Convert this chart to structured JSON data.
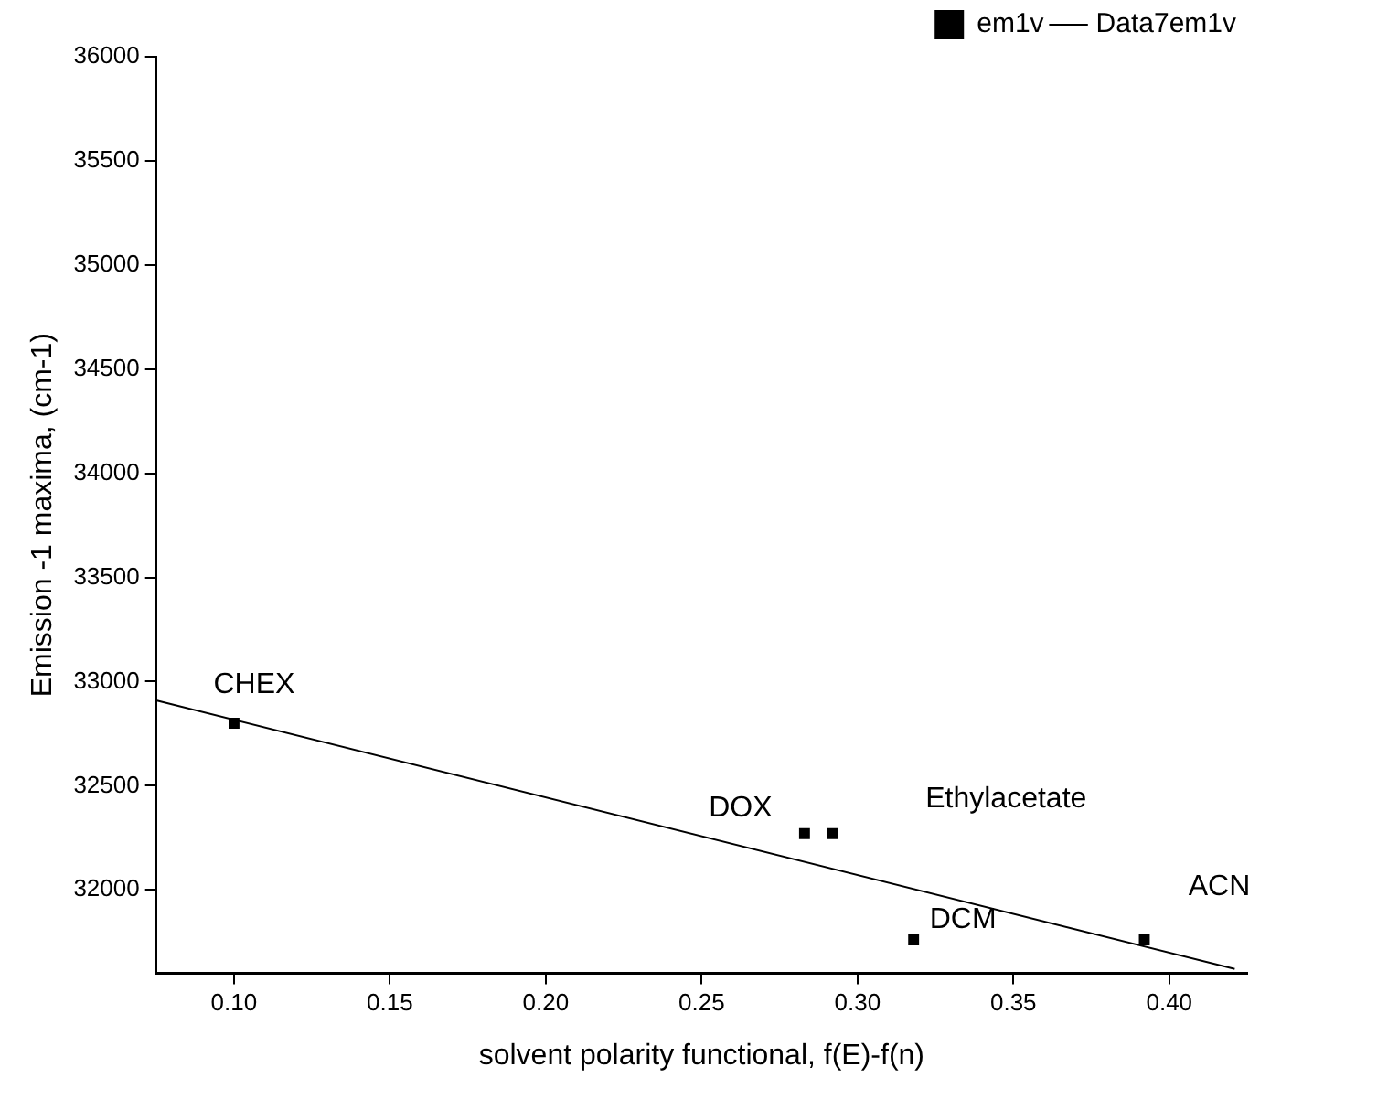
{
  "chart_data": {
    "type": "scatter",
    "xlabel": "solvent polarity functional, f(E)-f(n)",
    "ylabel": "Emission -1 maxima, (cm-1)",
    "series": [
      {
        "name": "em1v",
        "type": "scatter",
        "color": "#000000",
        "marker": "square",
        "x": [
          0.1,
          0.283,
          0.292,
          0.318,
          0.392
        ],
        "values": [
          32800,
          32270,
          32270,
          31760,
          31760
        ]
      },
      {
        "name": "Data7em1v",
        "type": "line",
        "color": "#000000",
        "marker": "none",
        "x": [
          0.075,
          0.421
        ],
        "values": [
          32910,
          31620
        ]
      }
    ],
    "xlim": [
      0.075,
      0.425
    ],
    "xticks": [
      {
        "value": 0.1,
        "label": "0.10"
      },
      {
        "value": 0.15,
        "label": "0.15"
      },
      {
        "value": 0.2,
        "label": "0.20"
      },
      {
        "value": 0.25,
        "label": "0.25"
      },
      {
        "value": 0.3,
        "label": "0.30"
      },
      {
        "value": 0.35,
        "label": "0.35"
      },
      {
        "value": 0.4,
        "label": "0.40"
      }
    ],
    "ylim": [
      31600,
      36000
    ],
    "yticks": [
      32000,
      32500,
      33000,
      33500,
      34000,
      34500,
      35000,
      35500,
      36000
    ],
    "grid": false,
    "legend": "top right",
    "annotations": [
      {
        "text": "CHEX",
        "x": 0.1,
        "y": 32800
      },
      {
        "text": "DOX",
        "x": 0.283,
        "y": 32270
      },
      "Ethylacetate",
      {
        "text": "DCM",
        "x": 0.318,
        "y": 31760
      },
      {
        "text": "ACN",
        "x": 0.392,
        "y": 31760
      }
    ]
  }
}
